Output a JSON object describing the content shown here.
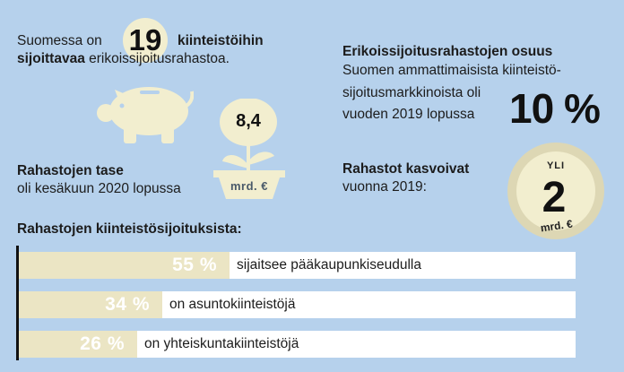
{
  "funds": {
    "text_before": "Suomessa on",
    "count": "19",
    "text_after_bold": "kiinteistöihin",
    "line2_bold": "sijoittavaa",
    "line2_rest": "erikoissijoitusrahastoa."
  },
  "balance": {
    "title": "Rahastojen tase",
    "subtitle": "oli kesäkuun 2020 lopussa",
    "value": "8,4",
    "unit": "mrd. €"
  },
  "share": {
    "title": "Erikoissijoitusrahastojen osuus",
    "line1": "Suomen ammattimaisista kiinteistö-",
    "line2": "sijoitusmarkkinoista oli",
    "line3": "vuoden 2019 lopussa",
    "value": "10 %"
  },
  "growth": {
    "title": "Rahastot kasvoivat",
    "subtitle": "vuonna 2019:",
    "prefix": "YLI",
    "value": "2",
    "unit": "mrd. €"
  },
  "colors": {
    "background": "#b6d1ec",
    "cream": "#ebe5c4",
    "coin": "#ddd7b4"
  },
  "chart_data": {
    "type": "bar",
    "title": "Rahastojen kiinteistösijoituksista:",
    "orientation": "horizontal",
    "categories": [
      "sijaitsee pääkaupunkiseudulla",
      "on asuntokiinteistöjä",
      "on yhteiskuntakiinteistöjä"
    ],
    "values": [
      55,
      34,
      26
    ],
    "value_labels": [
      "55 %",
      "34 %",
      "26 %"
    ],
    "xlim": [
      0,
      100
    ]
  }
}
